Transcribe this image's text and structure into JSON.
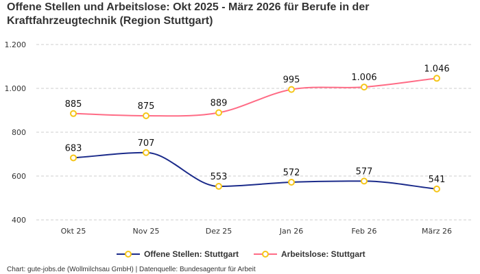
{
  "chart_data": {
    "type": "line",
    "title": "Offene Stellen und Arbeitslose: Okt 2025 - März 2026 für Berufe in der Kraftfahrzeugtechnik (Region Stuttgart)",
    "categories": [
      "Okt 25",
      "Nov 25",
      "Dez 25",
      "Jan 26",
      "Feb 26",
      "März 26"
    ],
    "ylim": [
      400,
      1200
    ],
    "yticks": [
      400,
      600,
      800,
      1000,
      1200
    ],
    "ytick_labels": [
      "400",
      "600",
      "800",
      "1.000",
      "1.200"
    ],
    "grid": true,
    "legend_placement": "bottom",
    "marker_color": "#f5c518",
    "series": [
      {
        "name": "Offene Stellen: Stuttgart",
        "color": "#1a2a8a",
        "values": [
          683,
          707,
          553,
          572,
          577,
          541
        ],
        "labels": [
          "683",
          "707",
          "553",
          "572",
          "577",
          "541"
        ]
      },
      {
        "name": "Arbeitslose: Stuttgart",
        "color": "#ff6b85",
        "values": [
          885,
          875,
          889,
          995,
          1006,
          1046
        ],
        "labels": [
          "885",
          "875",
          "889",
          "995",
          "1.006",
          "1.046"
        ]
      }
    ],
    "credit": "Chart: gute-jobs.de (Wollmilchsau GmbH) | Datenquelle: Bundesagentur für Arbeit"
  }
}
